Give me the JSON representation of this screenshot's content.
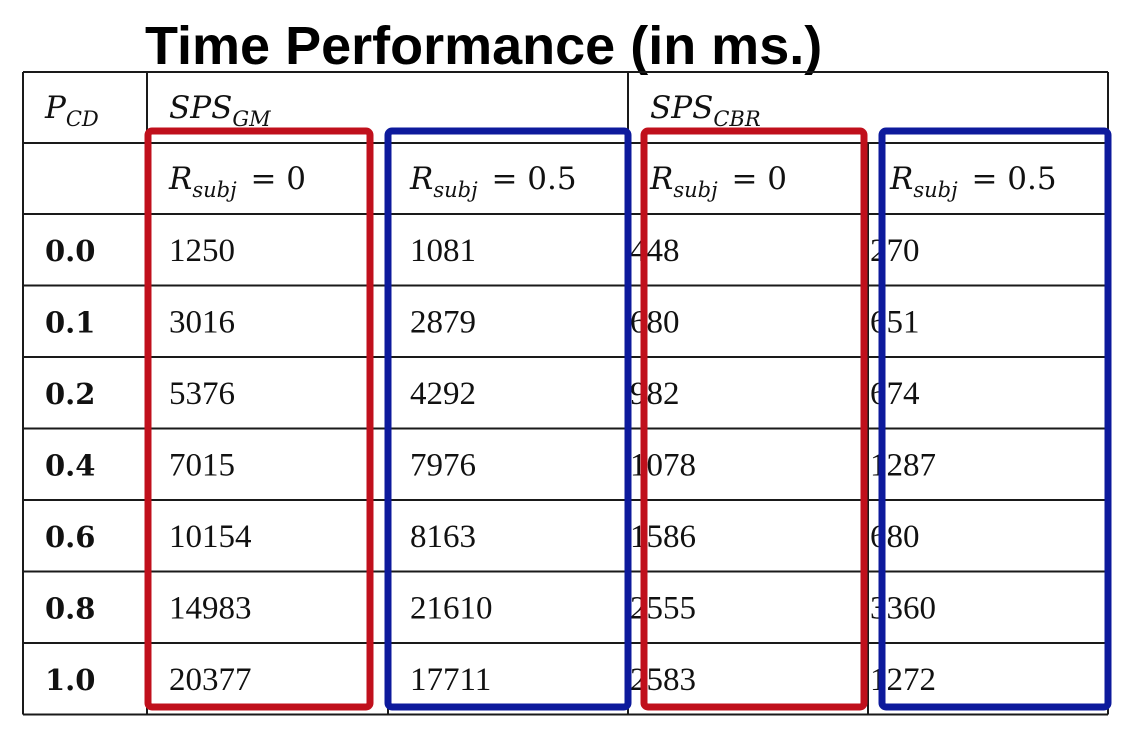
{
  "title": "Time Performance (in ms.)",
  "chart_data": {
    "type": "table",
    "title": "Time Performance (in ms.)",
    "row_header": {
      "base": "P",
      "sub": "CD"
    },
    "groups": [
      {
        "base": "SPS",
        "sub": "GM"
      },
      {
        "base": "SPS",
        "sub": "CBR"
      }
    ],
    "columns": [
      {
        "base": "R",
        "sub": "subj",
        "rest": " = 0",
        "highlight": "#c0101c"
      },
      {
        "base": "R",
        "sub": "subj",
        "rest": " = 0.5",
        "highlight": "#0d1a9c"
      },
      {
        "base": "R",
        "sub": "subj",
        "rest": " = 0",
        "highlight": "#c0101c"
      },
      {
        "base": "R",
        "sub": "subj",
        "rest": " = 0.5",
        "highlight": "#0d1a9c"
      }
    ],
    "rows": [
      {
        "p": "0.0",
        "values": [
          "1250",
          "1081",
          "448",
          "270"
        ]
      },
      {
        "p": "0.1",
        "values": [
          "3016",
          "2879",
          "680",
          "651"
        ]
      },
      {
        "p": "0.2",
        "values": [
          "5376",
          "4292",
          "982",
          "674"
        ]
      },
      {
        "p": "0.4",
        "values": [
          "7015",
          "7976",
          "1078",
          "1287"
        ]
      },
      {
        "p": "0.6",
        "values": [
          "10154",
          "8163",
          "1586",
          "680"
        ]
      },
      {
        "p": "0.8",
        "values": [
          "14983",
          "21610",
          "2555",
          "3360"
        ]
      },
      {
        "p": "1.0",
        "values": [
          "20377",
          "17711",
          "2583",
          "1272"
        ]
      }
    ]
  }
}
